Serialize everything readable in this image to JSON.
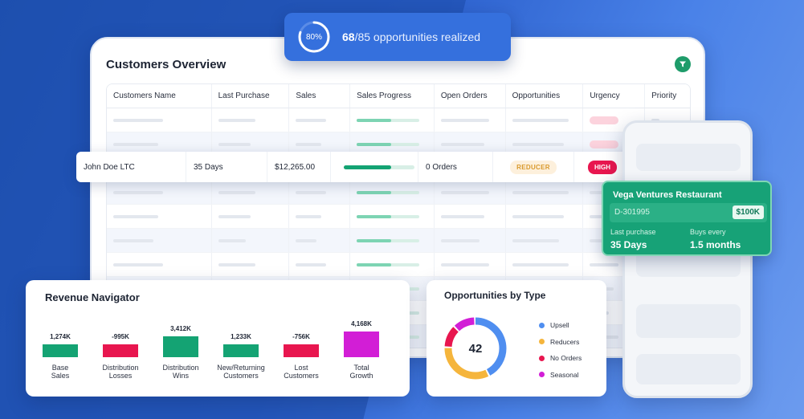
{
  "progress": {
    "percent_label": "80%",
    "percent": 0.8,
    "realized": "68",
    "total": "/85",
    "suffix": " opportunities realized"
  },
  "customers": {
    "title": "Customers Overview",
    "columns": [
      "Customers Name",
      "Last Purchase",
      "Sales",
      "Sales Progress",
      "Open Orders",
      "Opportunities",
      "Urgency",
      "Priority"
    ],
    "highlight": {
      "name": "John Doe LTC",
      "last_purchase": "35 Days",
      "sales": "$12,265.00",
      "sales_progress": 0.67,
      "open_orders": "0 Orders",
      "opportunity": "REDUCER",
      "urgency": "HIGH"
    }
  },
  "restaurant": {
    "name": "Vega Ventures Restaurant",
    "id": "D-301995",
    "amount": "$100K",
    "last_purchase_label": "Last purchase",
    "last_purchase": "35 Days",
    "buys_every_label": "Buys every",
    "buys_every": "1.5 months"
  },
  "revenue": {
    "title": "Revenue Navigator",
    "items": [
      {
        "value": "1,274K",
        "line1": "Base",
        "line2": "Sales",
        "color": "#14a373"
      },
      {
        "value": "-995K",
        "line1": "Distribution",
        "line2": "Losses",
        "color": "#e8164f"
      },
      {
        "value": "3,412K",
        "line1": "Distribution",
        "line2": "Wins",
        "color": "#14a373"
      },
      {
        "value": "1,233K",
        "line1": "New/Returning",
        "line2": "Customers",
        "color": "#14a373"
      },
      {
        "value": "-756K",
        "line1": "Lost",
        "line2": "Customers",
        "color": "#e8164f"
      },
      {
        "value": "4,168K",
        "line1": "Total",
        "line2": "Growth",
        "color": "#d21ed6"
      }
    ]
  },
  "opportunities": {
    "title": "Opportunities by Type",
    "total": "42",
    "segments": [
      {
        "name": "Upsell",
        "color": "#4f8ef0",
        "share": 0.43
      },
      {
        "name": "Reducers",
        "color": "#f5b53c",
        "share": 0.33
      },
      {
        "name": "No Orders",
        "color": "#e8164f",
        "share": 0.12
      },
      {
        "name": "Seasonal",
        "color": "#d21ed6",
        "share": 0.12
      }
    ]
  },
  "colors": {
    "accent": "#3570dd",
    "green": "#14a373",
    "red": "#e8164f",
    "magenta": "#d21ed6"
  }
}
